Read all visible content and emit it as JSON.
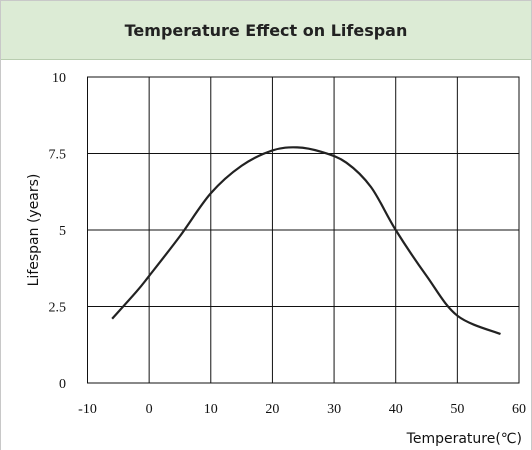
{
  "chart_data": {
    "type": "line",
    "title": "Temperature Effect on Lifespan",
    "xlabel": "Temperature(℃)",
    "ylabel": "Lifespan (years)",
    "x": [
      -6,
      -2,
      0,
      5,
      10,
      15,
      20,
      24,
      28,
      32,
      36,
      40,
      45,
      50,
      57
    ],
    "series": [
      {
        "name": "Lifespan",
        "color": "#222222",
        "values": [
          2.1,
          3.0,
          3.5,
          4.8,
          6.2,
          7.1,
          7.6,
          7.7,
          7.55,
          7.2,
          6.4,
          5.0,
          3.5,
          2.2,
          1.6
        ]
      }
    ],
    "xlim": [
      -10,
      60
    ],
    "xticks": [
      -10,
      0,
      10,
      20,
      30,
      40,
      50,
      60
    ],
    "ylim": [
      0,
      10
    ],
    "yticks": [
      0,
      2.5,
      5,
      7.5,
      10
    ],
    "grid": true
  }
}
